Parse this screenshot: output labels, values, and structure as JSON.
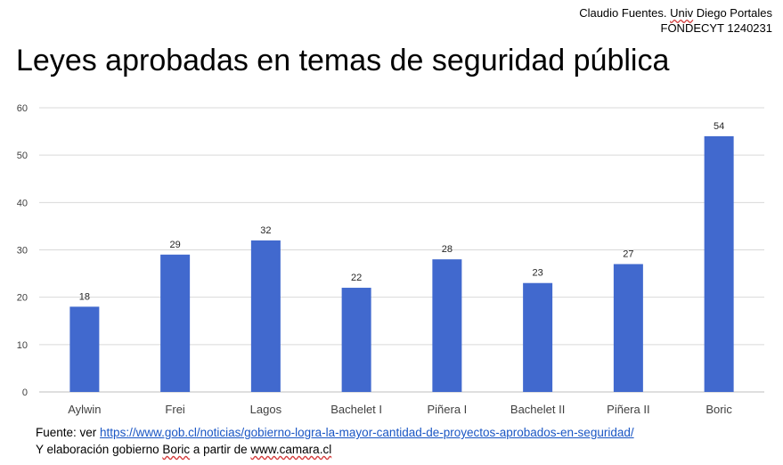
{
  "credit": {
    "line1_prefix": "Claudio Fuentes. ",
    "line1_univ": "Univ",
    "line1_suffix": " Diego Portales",
    "line2": "FONDECYT 1240231"
  },
  "colors": {
    "bar": "#4169CE",
    "grid": "#d9d9d9",
    "axis_text": "#404040",
    "link": "#1a56c4"
  },
  "chart_data": {
    "type": "bar",
    "title": "Leyes aprobadas en temas de seguridad pública",
    "xlabel": "",
    "ylabel": "",
    "categories": [
      "Aylwin",
      "Frei",
      "Lagos",
      "Bachelet I",
      "Piñera I",
      "Bachelet II",
      "Piñera II",
      "Boric"
    ],
    "values": [
      18,
      29,
      32,
      22,
      28,
      23,
      27,
      54
    ],
    "data_labels": [
      "18",
      "29",
      "32",
      "22",
      "28",
      "23",
      "27",
      "54"
    ],
    "ylim": [
      0,
      60
    ],
    "yticks": [
      "0",
      "10",
      "20",
      "30",
      "40",
      "50",
      "60"
    ],
    "grid": true,
    "legend": "none"
  },
  "source": {
    "prefix": "Fuente: ver ",
    "url": "https://www.gob.cl/noticias/gobierno-logra-la-mayor-cantidad-de-proyectos-aprobados-en-seguridad/",
    "line2_prefix": "Y elaboración gobierno ",
    "line2_boric": "Boric",
    "line2_mid": " a partir de ",
    "line2_site": "www.camara.cl"
  }
}
